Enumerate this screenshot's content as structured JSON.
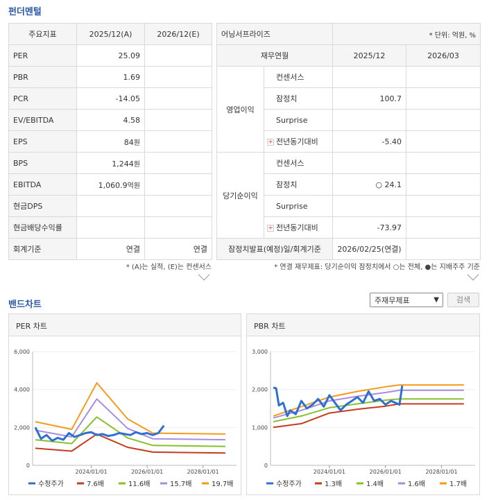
{
  "fundamental": {
    "title": "펀더멘털",
    "headers": [
      "주요지표",
      "2025/12(A)",
      "2026/12(E)"
    ],
    "rows": [
      {
        "label": "PER",
        "v1": "25.09",
        "u1": "",
        "v2": ""
      },
      {
        "label": "PBR",
        "v1": "1.69",
        "u1": "",
        "v2": ""
      },
      {
        "label": "PCR",
        "v1": "-14.05",
        "u1": "",
        "v2": ""
      },
      {
        "label": "EV/EBITDA",
        "v1": "4.58",
        "u1": "",
        "v2": ""
      },
      {
        "label": "EPS",
        "v1": "84",
        "u1": "원",
        "v2": ""
      },
      {
        "label": "BPS",
        "v1": "1,244",
        "u1": "원",
        "v2": ""
      },
      {
        "label": "EBITDA",
        "v1": "1,060.9",
        "u1": "억원",
        "v2": ""
      },
      {
        "label": "현금DPS",
        "v1": "",
        "u1": "",
        "v2": ""
      },
      {
        "label": "현금배당수익률",
        "v1": "",
        "u1": "",
        "v2": ""
      },
      {
        "label": "회계기준",
        "v1": "연결",
        "u1": "",
        "v2": "연결"
      }
    ],
    "note": "* (A)는 실적, (E)는 컨센서스"
  },
  "earnings": {
    "title": "어닝서프라이즈",
    "unit": "* 단위: 억원, %",
    "headers": [
      "재무연월",
      "2025/12",
      "2026/03"
    ],
    "groups": [
      {
        "name": "영업이익",
        "rows": [
          {
            "label": "컨센서스",
            "v1": "",
            "v2": ""
          },
          {
            "label": "잠정치",
            "v1": "100.7",
            "v2": ""
          },
          {
            "label": "Surprise",
            "v1": "",
            "v2": ""
          },
          {
            "label": "전년동기대비",
            "v1": "-5.40",
            "v2": ""
          }
        ]
      },
      {
        "name": "당기순이익",
        "rows": [
          {
            "label": "컨센서스",
            "v1": "",
            "v2": ""
          },
          {
            "label": "잠정치",
            "v1": "○ 24.1",
            "v2": ""
          },
          {
            "label": "Surprise",
            "v1": "",
            "v2": ""
          },
          {
            "label": "전년동기대비",
            "v1": "-73.97",
            "v2": ""
          }
        ]
      }
    ],
    "footer_label": "잠정치발표(예정)일/회계기준",
    "footer_value": "2026/02/25(연결)",
    "note": "* 연결 재무제표: 당기순이익 잠정치에서 ○는 전체, ●는 지배주주 기준"
  },
  "band": {
    "title": "밴드차트",
    "select_value": "주재무제표",
    "search_label": "검색"
  },
  "chart_data": [
    {
      "type": "line",
      "title": "PER 차트",
      "x_ticks": [
        "2024/01/01",
        "2026/01/01",
        "2028/01/01"
      ],
      "y_ticks": [
        "0",
        "2,000",
        "4,000",
        "6,000"
      ],
      "ylim": [
        0,
        6000
      ],
      "xlim": [
        2021.9,
        2029.2
      ],
      "series": [
        {
          "name": "수정주가",
          "color": "#2f6fd1",
          "width": 3,
          "x": [
            2022.0,
            2022.2,
            2022.4,
            2022.6,
            2022.8,
            2023.0,
            2023.2,
            2023.4,
            2023.6,
            2023.8,
            2024.0,
            2024.2,
            2024.4,
            2024.6,
            2024.8,
            2025.0,
            2025.2,
            2025.4,
            2025.6,
            2025.8,
            2026.0,
            2026.2,
            2026.4,
            2026.6
          ],
          "y": [
            2000,
            1400,
            1600,
            1300,
            1450,
            1350,
            1700,
            1500,
            1600,
            1700,
            1750,
            1600,
            1650,
            1550,
            1600,
            1700,
            1650,
            1600,
            1750,
            1650,
            1700,
            1600,
            1700,
            2100
          ]
        },
        {
          "name": "7.6배",
          "color": "#c63a1e",
          "x": [
            2022.0,
            2023.3,
            2024.2,
            2025.3,
            2026.2,
            2028.8
          ],
          "y": [
            900,
            750,
            1650,
            950,
            700,
            650
          ]
        },
        {
          "name": "11.6배",
          "color": "#86c12c",
          "x": [
            2022.0,
            2023.3,
            2024.2,
            2025.3,
            2026.2,
            2028.8
          ],
          "y": [
            1350,
            1150,
            2550,
            1450,
            1050,
            1000
          ]
        },
        {
          "name": "15.7배",
          "color": "#a98be0",
          "x": [
            2022.0,
            2023.3,
            2024.2,
            2025.3,
            2026.2,
            2028.8
          ],
          "y": [
            1850,
            1500,
            3500,
            1950,
            1400,
            1350
          ]
        },
        {
          "name": "19.7배",
          "color": "#f59a1b",
          "x": [
            2022.0,
            2023.3,
            2024.2,
            2025.3,
            2026.2,
            2028.8
          ],
          "y": [
            2300,
            1900,
            4350,
            2450,
            1700,
            1650
          ]
        }
      ]
    },
    {
      "type": "line",
      "title": "PBR 차트",
      "x_ticks": [
        "2024/01/01",
        "2026/01/01",
        "2028/01/01"
      ],
      "y_ticks": [
        "0",
        "1,000",
        "2,000",
        "3,000"
      ],
      "ylim": [
        0,
        3000
      ],
      "xlim": [
        2021.9,
        2029.2
      ],
      "series": [
        {
          "name": "수정주가",
          "color": "#2f6fd1",
          "width": 3,
          "x": [
            2022.0,
            2022.1,
            2022.2,
            2022.35,
            2022.5,
            2022.6,
            2022.8,
            2023.0,
            2023.2,
            2023.4,
            2023.6,
            2023.8,
            2024.0,
            2024.2,
            2024.4,
            2024.6,
            2024.8,
            2025.0,
            2025.2,
            2025.4,
            2025.6,
            2025.8,
            2026.0,
            2026.2,
            2026.35,
            2026.5,
            2026.6
          ],
          "y": [
            2050,
            2030,
            1580,
            1650,
            1300,
            1450,
            1350,
            1700,
            1500,
            1600,
            1750,
            1550,
            1850,
            1650,
            1450,
            1600,
            1700,
            1800,
            1650,
            1950,
            1700,
            1750,
            1600,
            1700,
            1650,
            1600,
            2100
          ]
        },
        {
          "name": "1.3배",
          "color": "#c63a1e",
          "x": [
            2022.0,
            2023.0,
            2024.0,
            2025.0,
            2026.0,
            2026.5,
            2028.8
          ],
          "y": [
            1000,
            1100,
            1380,
            1480,
            1560,
            1620,
            1620
          ]
        },
        {
          "name": "1.4배",
          "color": "#86c12c",
          "x": [
            2022.0,
            2023.0,
            2024.0,
            2025.0,
            2026.0,
            2026.5,
            2028.8
          ],
          "y": [
            1150,
            1300,
            1520,
            1620,
            1720,
            1750,
            1750
          ]
        },
        {
          "name": "1.6배",
          "color": "#a98be0",
          "x": [
            2022.0,
            2023.0,
            2024.0,
            2025.0,
            2026.0,
            2026.5,
            2028.8
          ],
          "y": [
            1250,
            1450,
            1700,
            1820,
            1920,
            1980,
            1980
          ]
        },
        {
          "name": "1.7배",
          "color": "#f59a1b",
          "x": [
            2022.0,
            2023.0,
            2024.0,
            2025.0,
            2026.0,
            2026.5,
            2028.8
          ],
          "y": [
            1300,
            1550,
            1800,
            1950,
            2070,
            2120,
            2120
          ]
        }
      ]
    }
  ]
}
